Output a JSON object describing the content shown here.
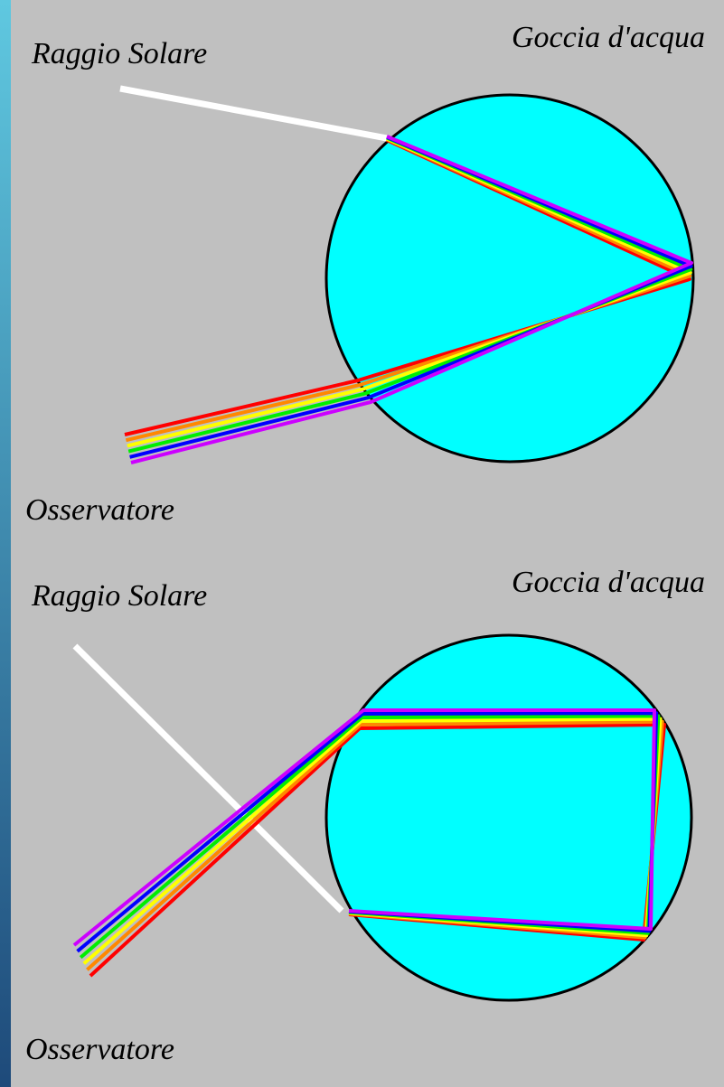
{
  "panels": [
    {
      "sun_ray": "Raggio Solare",
      "drop": "Goccia d'acqua",
      "observer": "Osservatore"
    },
    {
      "sun_ray": "Raggio Solare",
      "drop": "Goccia d'acqua",
      "observer": "Osservatore"
    }
  ]
}
